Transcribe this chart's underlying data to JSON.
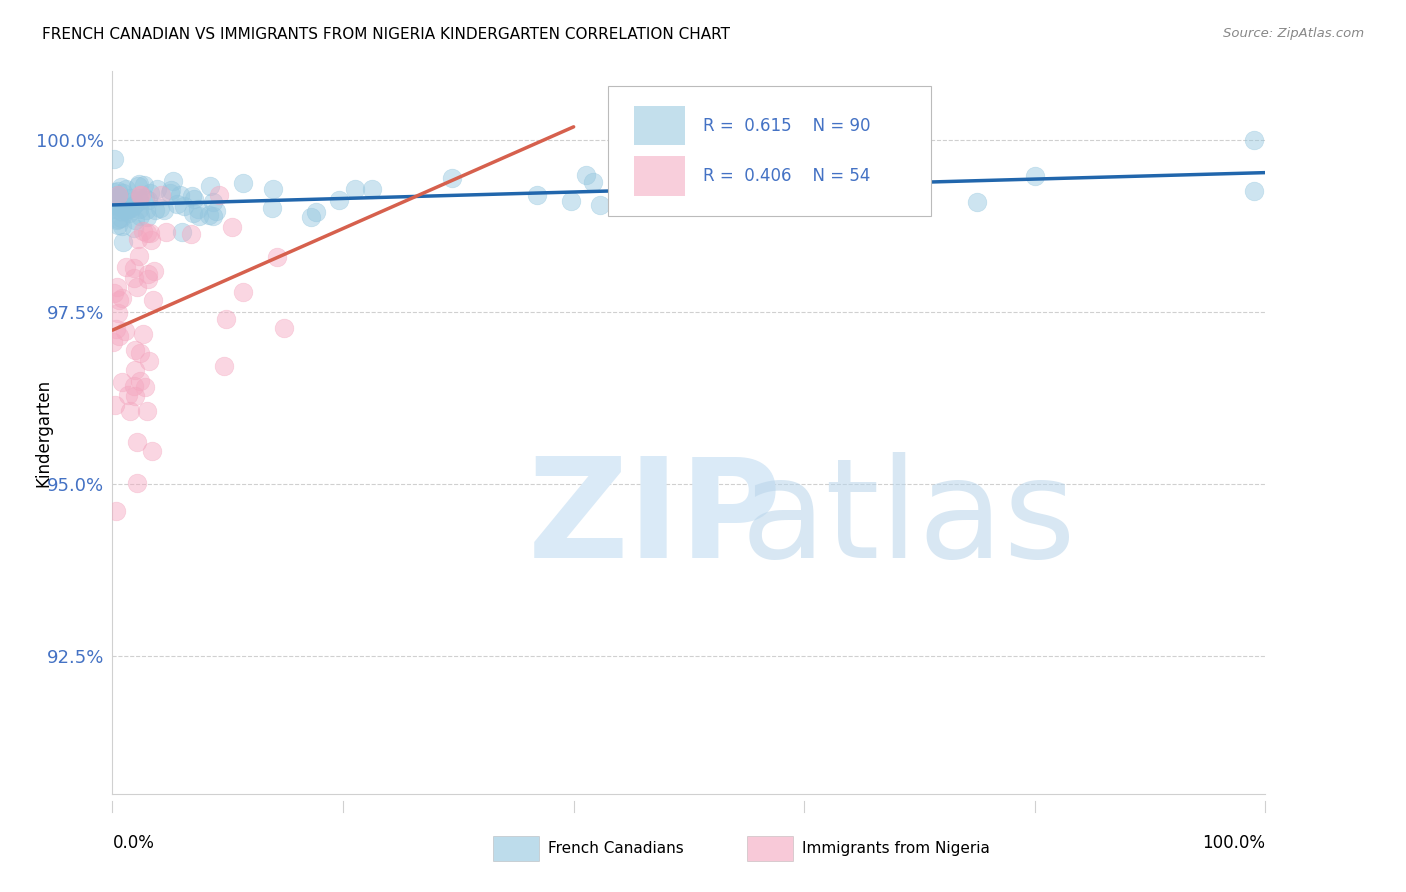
{
  "title": "FRENCH CANADIAN VS IMMIGRANTS FROM NIGERIA KINDERGARTEN CORRELATION CHART",
  "source": "Source: ZipAtlas.com",
  "ylabel": "Kindergarten",
  "yticks": [
    92.5,
    95.0,
    97.5,
    100.0
  ],
  "xlim": [
    0,
    100
  ],
  "ylim": [
    90.5,
    101.0
  ],
  "legend_blue_label": "French Canadians",
  "legend_pink_label": "Immigrants from Nigeria",
  "legend_R_blue": "R =  0.615",
  "legend_N_blue": "N = 90",
  "legend_R_pink": "R =  0.406",
  "legend_N_pink": "N = 54",
  "blue_color": "#92c5de",
  "pink_color": "#f4a6bf",
  "trendline_blue_color": "#2166ac",
  "trendline_pink_color": "#d6604d",
  "ytick_color": "#4472c4",
  "grid_color": "#d0d0d0",
  "n_blue": 90,
  "n_pink": 54
}
